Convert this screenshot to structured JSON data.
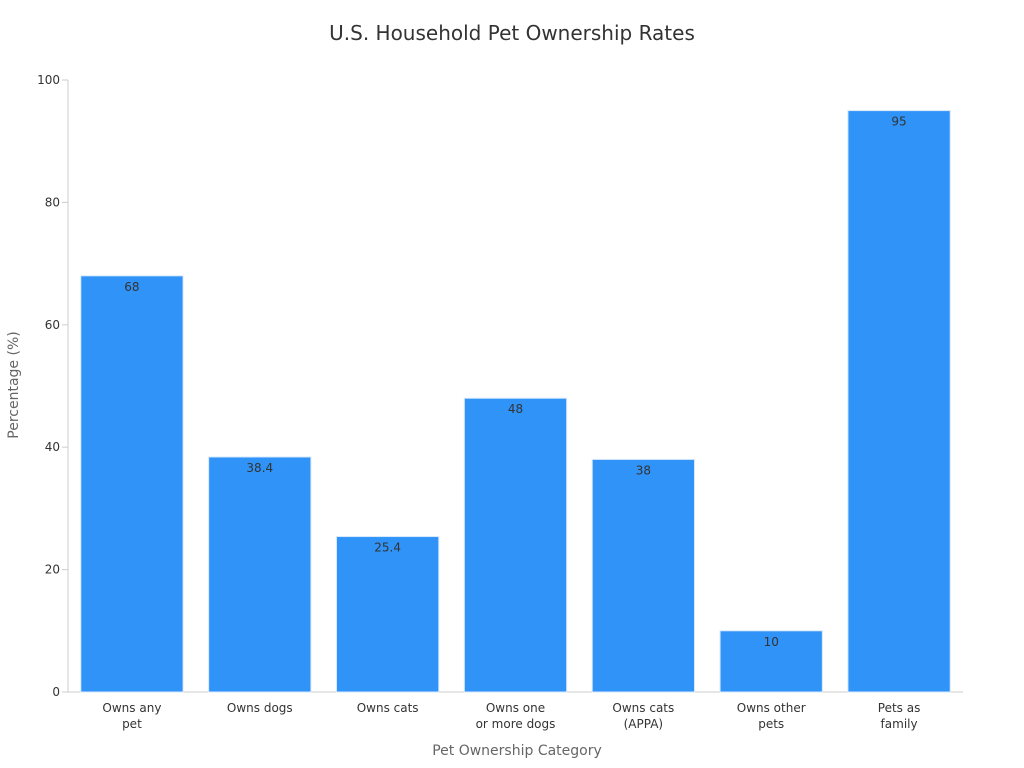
{
  "chart_data": {
    "type": "bar",
    "title": "U.S. Household Pet Ownership Rates",
    "xlabel": "Pet Ownership Category",
    "ylabel": "Percentage (%)",
    "ylim": [
      0,
      100
    ],
    "yticks": [
      0,
      20,
      40,
      60,
      80,
      100
    ],
    "grid": false,
    "categories": [
      [
        "Owns any",
        "pet"
      ],
      [
        "Owns dogs"
      ],
      [
        "Owns cats"
      ],
      [
        "Owns one",
        "or more dogs"
      ],
      [
        "Owns cats",
        "(APPA)"
      ],
      [
        "Owns other",
        "pets"
      ],
      [
        "Pets as",
        "family"
      ]
    ],
    "values": [
      68,
      38.4,
      25.4,
      48,
      38,
      10,
      95
    ],
    "value_labels": [
      "68",
      "38.4",
      "25.4",
      "48",
      "38",
      "10",
      "95"
    ],
    "colors": {
      "bar": "#3093f8",
      "bar_edge": "#d6e8fb",
      "axis": "#cccccc",
      "text": "#333333",
      "axis_title": "#666666"
    }
  }
}
